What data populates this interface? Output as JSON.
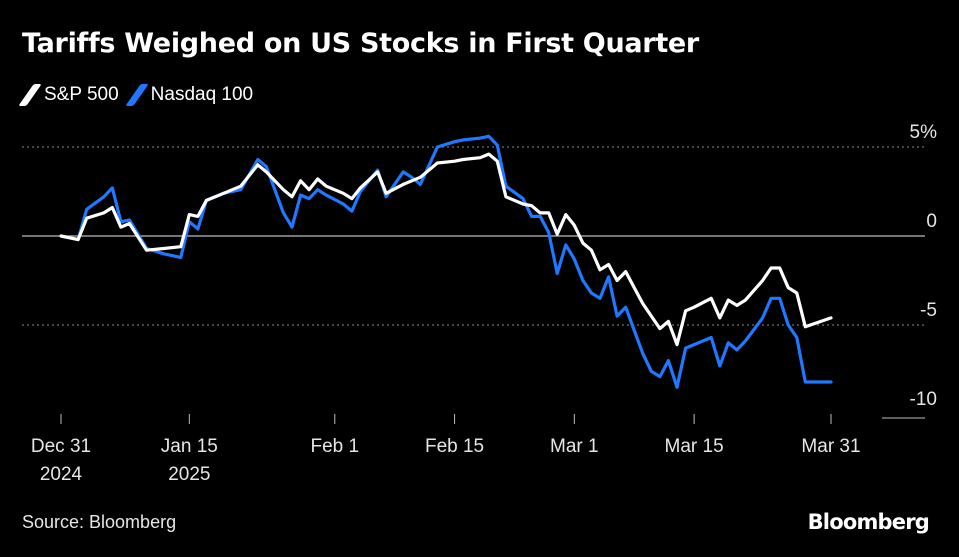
{
  "header": {
    "title": "Tariffs Weighed on US Stocks in First Quarter"
  },
  "footer": {
    "source": "Source: Bloomberg",
    "brand": "Bloomberg"
  },
  "colors": {
    "sp500": "#ffffff",
    "nasdaq": "#1f78ff",
    "grid": "#8c8c8c",
    "zero": "#bdbdbd",
    "background": "#000000"
  },
  "chart_data": {
    "type": "line",
    "ylim": [
      -10,
      5
    ],
    "yticks": [
      {
        "value": 5,
        "label": "5%"
      },
      {
        "value": 0,
        "label": "0"
      },
      {
        "value": -5,
        "label": "-5"
      },
      {
        "value": -10,
        "label": "-10"
      }
    ],
    "xlim": [
      0,
      90
    ],
    "xticks": [
      {
        "day": 0,
        "label": [
          "Dec 31",
          "2024"
        ]
      },
      {
        "day": 15,
        "label": [
          "Jan 15",
          "2025"
        ]
      },
      {
        "day": 32,
        "label": [
          "Feb 1"
        ]
      },
      {
        "day": 46,
        "label": [
          "Feb 15"
        ]
      },
      {
        "day": 60,
        "label": [
          "Mar 1"
        ]
      },
      {
        "day": 74,
        "label": [
          "Mar 15"
        ]
      },
      {
        "day": 90,
        "label": [
          "Mar 31"
        ]
      }
    ],
    "grid": true,
    "legend_position": "top-left",
    "series": [
      {
        "name": "S&P 500",
        "color_key": "sp500",
        "points": [
          [
            0,
            0
          ],
          [
            2,
            -0.2
          ],
          [
            3,
            1.0
          ],
          [
            5,
            1.3
          ],
          [
            6,
            1.6
          ],
          [
            7,
            0.5
          ],
          [
            8,
            0.7
          ],
          [
            10,
            -0.8
          ],
          [
            12,
            -0.7
          ],
          [
            14,
            -0.6
          ],
          [
            15,
            1.2
          ],
          [
            16,
            1.1
          ],
          [
            17,
            2.0
          ],
          [
            19,
            2.4
          ],
          [
            21,
            2.8
          ],
          [
            23,
            4.0
          ],
          [
            24,
            3.6
          ],
          [
            26,
            2.6
          ],
          [
            27,
            2.2
          ],
          [
            28,
            3.1
          ],
          [
            29,
            2.6
          ],
          [
            30,
            3.2
          ],
          [
            31,
            2.8
          ],
          [
            33,
            2.4
          ],
          [
            34,
            2.1
          ],
          [
            35,
            2.7
          ],
          [
            37,
            3.6
          ],
          [
            38,
            2.4
          ],
          [
            40,
            2.9
          ],
          [
            41,
            3.1
          ],
          [
            42,
            3.3
          ],
          [
            44,
            4.1
          ],
          [
            46,
            4.2
          ],
          [
            47,
            4.3
          ],
          [
            49,
            4.4
          ],
          [
            50,
            4.6
          ],
          [
            51,
            4.2
          ],
          [
            52,
            2.2
          ],
          [
            54,
            1.8
          ],
          [
            55,
            1.7
          ],
          [
            56,
            1.3
          ],
          [
            57,
            1.3
          ],
          [
            58,
            0.1
          ],
          [
            59,
            1.2
          ],
          [
            60,
            0.6
          ],
          [
            61,
            -0.4
          ],
          [
            62,
            -0.8
          ],
          [
            63,
            -1.9
          ],
          [
            64,
            -1.6
          ],
          [
            65,
            -2.5
          ],
          [
            66,
            -2.0
          ],
          [
            67,
            -2.9
          ],
          [
            68,
            -3.8
          ],
          [
            70,
            -5.2
          ],
          [
            71,
            -4.8
          ],
          [
            72,
            -6.1
          ],
          [
            73,
            -4.2
          ],
          [
            74,
            -4.0
          ],
          [
            76,
            -3.5
          ],
          [
            77,
            -4.6
          ],
          [
            78,
            -3.6
          ],
          [
            79,
            -3.9
          ],
          [
            80,
            -3.6
          ],
          [
            82,
            -2.5
          ],
          [
            83,
            -1.8
          ],
          [
            84,
            -1.8
          ],
          [
            85,
            -2.9
          ],
          [
            86,
            -3.2
          ],
          [
            87,
            -5.1
          ],
          [
            90,
            -4.6
          ]
        ]
      },
      {
        "name": "Nasdaq 100",
        "color_key": "nasdaq",
        "points": [
          [
            0,
            0
          ],
          [
            2,
            -0.2
          ],
          [
            3,
            1.5
          ],
          [
            5,
            2.2
          ],
          [
            6,
            2.7
          ],
          [
            7,
            0.8
          ],
          [
            8,
            0.9
          ],
          [
            10,
            -0.7
          ],
          [
            12,
            -1.0
          ],
          [
            14,
            -1.2
          ],
          [
            15,
            0.8
          ],
          [
            16,
            0.4
          ],
          [
            17,
            2.0
          ],
          [
            19,
            2.4
          ],
          [
            21,
            2.6
          ],
          [
            23,
            4.3
          ],
          [
            24,
            3.9
          ],
          [
            26,
            1.3
          ],
          [
            27,
            0.5
          ],
          [
            28,
            2.3
          ],
          [
            29,
            2.1
          ],
          [
            30,
            2.6
          ],
          [
            31,
            2.3
          ],
          [
            33,
            1.8
          ],
          [
            34,
            1.4
          ],
          [
            35,
            2.5
          ],
          [
            37,
            3.7
          ],
          [
            38,
            2.2
          ],
          [
            40,
            3.6
          ],
          [
            41,
            3.3
          ],
          [
            42,
            2.9
          ],
          [
            44,
            5.0
          ],
          [
            46,
            5.3
          ],
          [
            47,
            5.4
          ],
          [
            49,
            5.5
          ],
          [
            50,
            5.6
          ],
          [
            51,
            5.1
          ],
          [
            52,
            2.8
          ],
          [
            54,
            2.1
          ],
          [
            55,
            1.1
          ],
          [
            56,
            1.1
          ],
          [
            57,
            0.2
          ],
          [
            58,
            -2.1
          ],
          [
            59,
            -0.5
          ],
          [
            60,
            -1.3
          ],
          [
            61,
            -2.5
          ],
          [
            62,
            -3.2
          ],
          [
            63,
            -3.5
          ],
          [
            64,
            -2.3
          ],
          [
            65,
            -4.5
          ],
          [
            66,
            -4.0
          ],
          [
            67,
            -5.3
          ],
          [
            68,
            -6.6
          ],
          [
            69,
            -7.6
          ],
          [
            70,
            -7.9
          ],
          [
            71,
            -7.0
          ],
          [
            72,
            -8.5
          ],
          [
            73,
            -6.3
          ],
          [
            74,
            -6.1
          ],
          [
            76,
            -5.7
          ],
          [
            77,
            -7.3
          ],
          [
            78,
            -6.0
          ],
          [
            79,
            -6.4
          ],
          [
            80,
            -5.9
          ],
          [
            82,
            -4.6
          ],
          [
            83,
            -3.5
          ],
          [
            84,
            -3.5
          ],
          [
            85,
            -5.0
          ],
          [
            86,
            -5.7
          ],
          [
            87,
            -8.2
          ],
          [
            90,
            -8.2
          ]
        ]
      }
    ]
  }
}
